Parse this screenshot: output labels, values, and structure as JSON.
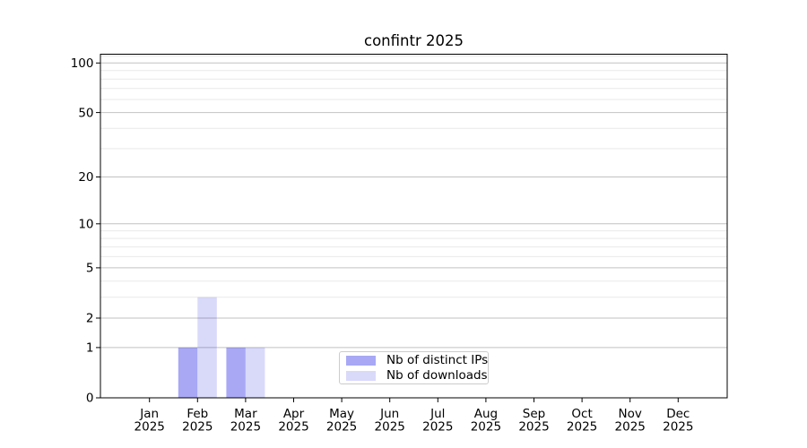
{
  "figure": {
    "background_color": "#ffffff",
    "axis_color": "#000000"
  },
  "chart_data": {
    "type": "bar",
    "title": "confintr 2025",
    "categories": [
      "Jan 2025",
      "Feb 2025",
      "Mar 2025",
      "Apr 2025",
      "May 2025",
      "Jun 2025",
      "Jul 2025",
      "Aug 2025",
      "Sep 2025",
      "Oct 2025",
      "Nov 2025",
      "Dec 2025"
    ],
    "series": [
      {
        "name": "Nb of distinct IPs",
        "color": "#a8a8f5",
        "values": [
          0,
          1,
          1,
          0,
          0,
          0,
          0,
          0,
          0,
          0,
          0,
          0
        ]
      },
      {
        "name": "Nb of downloads",
        "color": "#d9d9fa",
        "values": [
          0,
          3,
          1,
          0,
          0,
          0,
          0,
          0,
          0,
          0,
          0,
          0
        ]
      }
    ],
    "xlabel": "",
    "ylabel": "",
    "yscale": "log1p",
    "ylim": [
      0,
      113
    ],
    "y_major_ticks": [
      0,
      1,
      2,
      5,
      10,
      20,
      50,
      100
    ],
    "y_minor_ticks": [
      3,
      4,
      6,
      7,
      8,
      9,
      30,
      40,
      60,
      70,
      80,
      90,
      110
    ],
    "grid": "horizontal",
    "major_grid_color": "#c2c2c2",
    "minor_grid_color": "#e9e9e9",
    "legend_position": "lower center"
  }
}
